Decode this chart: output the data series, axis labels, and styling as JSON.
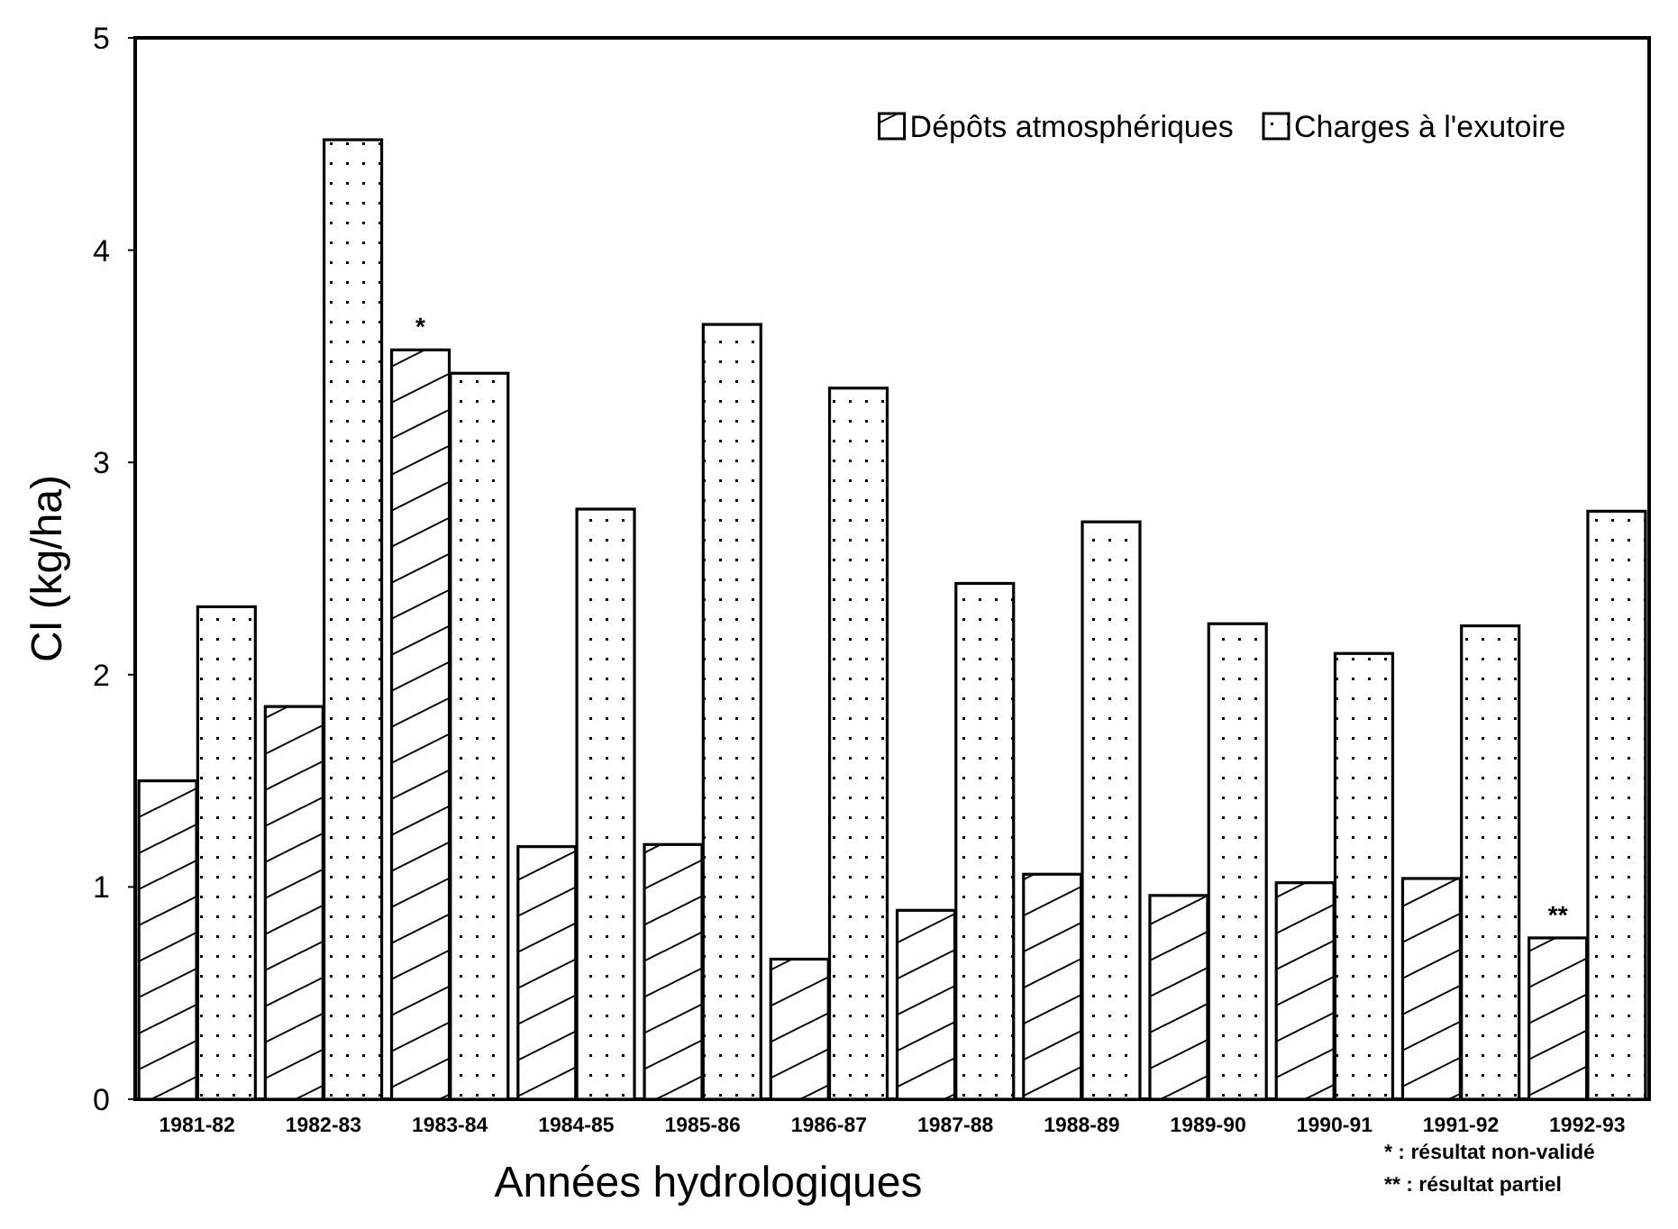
{
  "chart_data": {
    "type": "bar",
    "xlabel": "Années hydrologiques",
    "ylabel": "Cl (kg/ha)",
    "categories": [
      "1981-82",
      "1982-83",
      "1983-84",
      "1984-85",
      "1985-86",
      "1986-87",
      "1987-88",
      "1988-89",
      "1989-90",
      "1990-91",
      "1991-92",
      "1992-93"
    ],
    "series": [
      {
        "name": "Dépôts atmosphériques",
        "color": "#000000",
        "values": [
          1.5,
          1.85,
          3.53,
          1.19,
          1.2,
          0.66,
          0.89,
          1.06,
          0.96,
          1.02,
          1.04,
          0.76
        ]
      },
      {
        "name": "Charges à l'exutoire",
        "color": "#000000",
        "values": [
          2.32,
          4.52,
          3.42,
          2.78,
          3.65,
          3.35,
          2.43,
          2.72,
          2.24,
          2.1,
          2.23,
          2.77
        ]
      }
    ],
    "ylim": [
      0,
      5
    ],
    "yticks": [
      0,
      1,
      2,
      3,
      4,
      5
    ],
    "legend": "top right",
    "annotations": [
      {
        "text": "*",
        "x": "1983-84",
        "y": 3.53
      },
      {
        "text": "**",
        "x": "1992-93",
        "y": 0.76
      },
      "* : résultat non-validé",
      "** : résultat partiel"
    ]
  }
}
